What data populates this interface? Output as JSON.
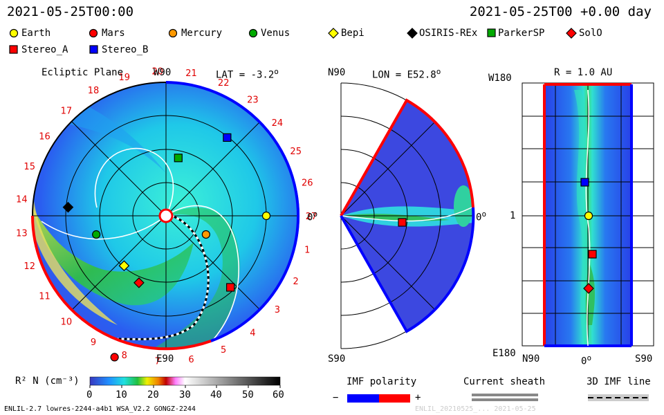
{
  "header": {
    "left_time": "2021-05-25T00:00",
    "right_time": "2021-05-25T00 +0.00 day"
  },
  "legend_items": [
    {
      "name": "Earth",
      "shape": "circle",
      "color": "#ffff00"
    },
    {
      "name": "Mars",
      "shape": "circle",
      "color": "#ff0000"
    },
    {
      "name": "Mercury",
      "shape": "circle",
      "color": "#ff9900"
    },
    {
      "name": "Venus",
      "shape": "circle",
      "color": "#00aa00"
    },
    {
      "name": "Bepi",
      "shape": "diamond",
      "color": "#ffff00"
    },
    {
      "name": "OSIRIS-REx",
      "shape": "diamond",
      "color": "#000000"
    },
    {
      "name": "ParkerSP",
      "shape": "square",
      "color": "#00aa00"
    },
    {
      "name": "SolO",
      "shape": "diamond",
      "color": "#ff0000"
    },
    {
      "name": "Stereo_A",
      "shape": "square",
      "color": "#ff0000"
    },
    {
      "name": "Stereo_B",
      "shape": "square",
      "color": "#0000ff"
    }
  ],
  "panels": {
    "ecliptic": {
      "title": "Ecliptic Plane",
      "top_label": "W90",
      "bottom_label": "E90",
      "right_label": "0",
      "lat": "LAT = -3.2",
      "lat_sup": "o"
    },
    "meridional": {
      "top_label": "N90",
      "bottom_label": "S90",
      "right_label": "0",
      "lon": "LON = E52.8",
      "lon_sup": "o"
    },
    "radial": {
      "title": "R = 1.0 AU",
      "top_left_label": "W180",
      "bottom_left_label": "E180",
      "mid_left_label": "1",
      "x_left": "N90",
      "x_mid": "0",
      "x_right": "S90"
    }
  },
  "carrington_numbers": [
    "1",
    "2",
    "3",
    "4",
    "5",
    "6",
    "7",
    "8",
    "9",
    "10",
    "11",
    "12",
    "13",
    "14",
    "15",
    "16",
    "17",
    "18",
    "19",
    "20",
    "21",
    "22",
    "23",
    "24",
    "25",
    "26",
    "27"
  ],
  "colorbar": {
    "label": "R² N (cm⁻³)",
    "ticks": [
      "0",
      "10",
      "20",
      "30",
      "40",
      "50",
      "60"
    ],
    "min": 0,
    "max": 60
  },
  "bottom_legends": {
    "imf_polarity": "IMF polarity",
    "minus": "−",
    "plus": "+",
    "current_sheath": "Current sheath",
    "imf_line": "3D IMF line"
  },
  "footer": {
    "left": "ENLIL-2.7 lowres-2244-a4b1 WSA_V2.2 GONGZ-2244",
    "right": "ENLIL_20210525_... 2021-05-25"
  },
  "chart_data": [
    {
      "type": "scatter",
      "title": "Ecliptic Plane",
      "coords": "polar",
      "body_positions_deg_from_earth": [
        {
          "name": "Earth",
          "angle_deg": 0,
          "r_au": 1.0
        },
        {
          "name": "Mercury",
          "angle_deg": -25,
          "r_au": 0.44
        },
        {
          "name": "Venus",
          "angle_deg": -165,
          "r_au": 0.72
        },
        {
          "name": "Mars",
          "angle_deg": -110,
          "r_au": 1.5
        },
        {
          "name": "Stereo_A",
          "angle_deg": -48,
          "r_au": 0.96
        },
        {
          "name": "Stereo_B",
          "angle_deg": 52,
          "r_au": 0.99
        },
        {
          "name": "ParkerSP",
          "angle_deg": 78,
          "r_au": 0.59
        },
        {
          "name": "OSIRIS-REx",
          "angle_deg": 175,
          "r_au": 0.98
        },
        {
          "name": "Bepi",
          "angle_deg": -130,
          "r_au": 0.65
        },
        {
          "name": "SolO",
          "angle_deg": -112,
          "r_au": 0.72
        }
      ]
    },
    {
      "type": "heatmap",
      "title": "Meridional",
      "markers": [
        {
          "name": "Stereo_A",
          "lat_deg": 0,
          "r_au": 0.95
        }
      ]
    },
    {
      "type": "heatmap",
      "title": "R = 1.0 AU",
      "markers": [
        {
          "name": "Stereo_B",
          "lat_deg": -2,
          "lon_deg": 52
        },
        {
          "name": "Earth",
          "lat_deg": 0,
          "lon_deg": 0
        },
        {
          "name": "Stereo_A",
          "lat_deg": 3,
          "lon_deg": -55
        },
        {
          "name": "SolO",
          "lat_deg": -1,
          "lon_deg": -110
        }
      ]
    }
  ]
}
